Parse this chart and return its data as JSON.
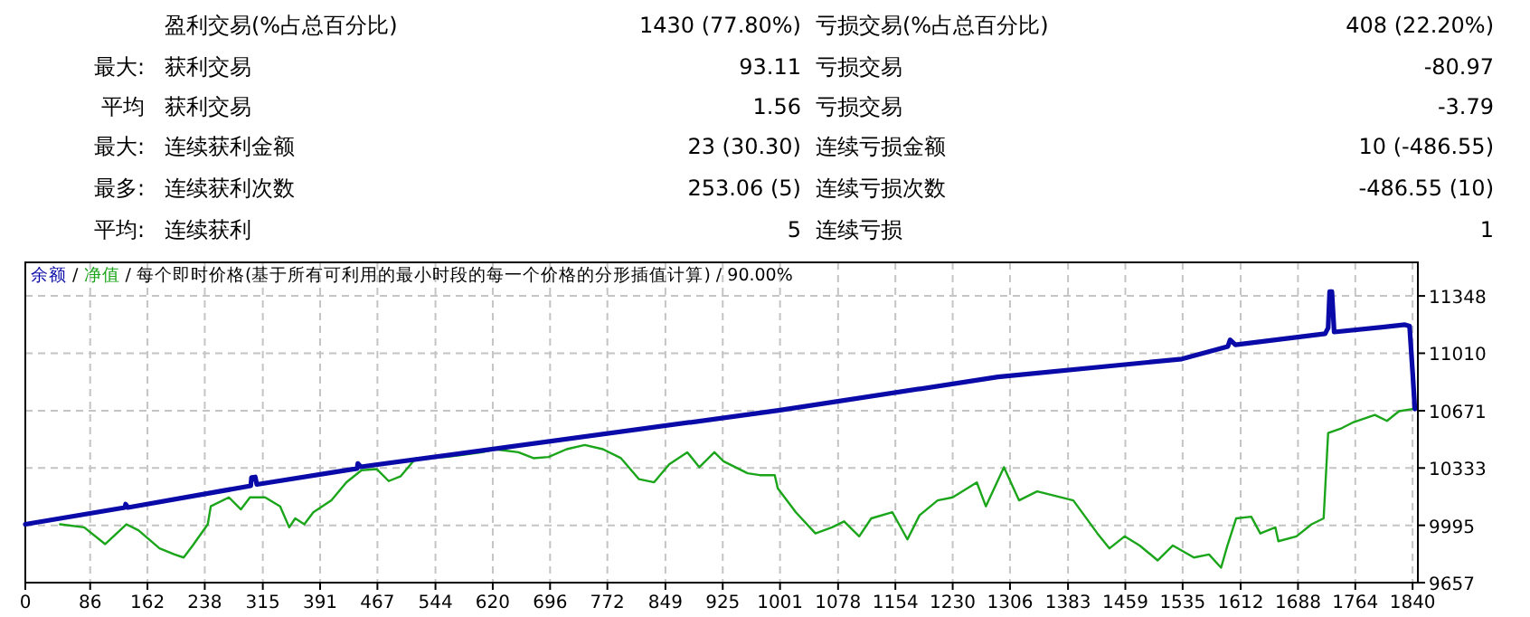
{
  "chart_data": [
    {
      "type": "other",
      "annotations": [
        "盈利交易(%占总百分比)",
        "1430 (77.80%)",
        "亏损交易(%占总百分比)",
        "408 (22.20%)",
        "最大: 获利交易",
        "93.11",
        "亏损交易",
        "-80.97",
        "平均 获利交易",
        "1.56",
        "亏损交易",
        "-3.79",
        "最大: 连续获利金额",
        "23 (30.30)",
        "连续亏损金额",
        "10 (-486.55)",
        "最多: 连续获利次数",
        "253.06 (5)",
        "连续亏损次数",
        "-486.55 (10)",
        "平均: 连续获利",
        "5",
        "连续亏损",
        "1"
      ]
    },
    {
      "type": "line",
      "title": "每个即时价格(基于所有可利用的最小时段的每一个价格的分形插值计算) / 90.00%",
      "legend": "top left",
      "grid": true,
      "annotations": [
        "/",
        "/"
      ],
      "xlim": [
        0,
        1847
      ],
      "ylim": [
        9657,
        11546
      ],
      "xticks": [
        0,
        86,
        162,
        238,
        315,
        391,
        467,
        544,
        620,
        696,
        772,
        849,
        925,
        1001,
        1078,
        1154,
        1230,
        1306,
        1383,
        1459,
        1535,
        1612,
        1688,
        1764,
        1840
      ],
      "yticks": [
        9657,
        9995,
        10333,
        10671,
        11010,
        11348
      ],
      "series": [
        {
          "name": "余额",
          "color": "#0a0aa8",
          "x": [
            0,
            132,
            133,
            136,
            299,
            300,
            305,
            307,
            440,
            441,
            445,
            1001,
            1290,
            1534,
            1595,
            1598,
            1605,
            1724,
            1728,
            1730,
            1733,
            1736,
            1830,
            1836,
            1840,
            1843
          ],
          "values": [
            10001,
            10100,
            10120,
            10100,
            10228,
            10277,
            10280,
            10236,
            10330,
            10360,
            10340,
            10674,
            10870,
            10976,
            11050,
            11089,
            11060,
            11125,
            11160,
            11373,
            11373,
            11135,
            11178,
            11170,
            10900,
            10681
          ]
        },
        {
          "name": "净值",
          "color": "#1aa51a",
          "x": [
            46,
            78,
            106,
            134,
            150,
            178,
            198,
            210,
            222,
            242,
            246,
            270,
            286,
            298,
            318,
            338,
            350,
            358,
            370,
            382,
            406,
            426,
            446,
            466,
            482,
            498,
            518,
            558,
            606,
            622,
            654,
            674,
            694,
            718,
            742,
            766,
            790,
            814,
            834,
            854,
            878,
            894,
            914,
            926,
            958,
            974,
            994,
            998,
            1022,
            1048,
            1070,
            1086,
            1106,
            1122,
            1150,
            1170,
            1186,
            1210,
            1230,
            1262,
            1274,
            1298,
            1318,
            1342,
            1390,
            1422,
            1438,
            1458,
            1478,
            1502,
            1522,
            1550,
            1570,
            1586,
            1594,
            1606,
            1626,
            1638,
            1658,
            1662,
            1686,
            1706,
            1722,
            1728,
            1746,
            1762,
            1790,
            1806,
            1822,
            1840
          ],
          "values": [
            10001,
            9983,
            9884,
            10001,
            9966,
            9859,
            9823,
            9805,
            9876,
            10001,
            10107,
            10160,
            10089,
            10160,
            10160,
            10107,
            9983,
            10036,
            10001,
            10072,
            10143,
            10249,
            10320,
            10327,
            10256,
            10285,
            10391,
            10398,
            10426,
            10444,
            10426,
            10391,
            10398,
            10444,
            10469,
            10444,
            10391,
            10267,
            10249,
            10355,
            10426,
            10338,
            10426,
            10373,
            10302,
            10291,
            10291,
            10213,
            10072,
            9947,
            9983,
            10018,
            9930,
            10036,
            10072,
            9912,
            10054,
            10142,
            10160,
            10248,
            10107,
            10338,
            10142,
            10195,
            10142,
            9947,
            9859,
            9930,
            9876,
            9788,
            9876,
            9805,
            9823,
            9745,
            9870,
            10036,
            10046,
            9947,
            9983,
            9901,
            9930,
            10001,
            10036,
            10540,
            10568,
            10604,
            10646,
            10611,
            10668,
            10681
          ]
        }
      ]
    }
  ]
}
